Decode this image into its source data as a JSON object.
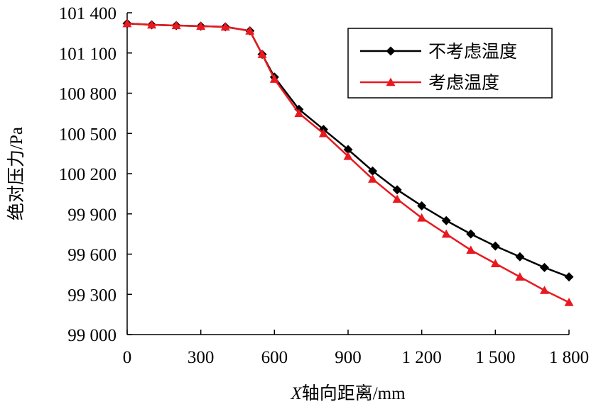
{
  "chart_data": {
    "type": "line",
    "xlabel_prefix": "X",
    "xlabel_rest": "轴向距离/mm",
    "ylabel": "绝对压力/Pa",
    "xlim": [
      0,
      1800
    ],
    "ylim": [
      99000,
      101400
    ],
    "x_ticks": [
      0,
      300,
      600,
      900,
      1200,
      1500,
      1800
    ],
    "x_tick_labels": [
      "0",
      "300",
      "600",
      "900",
      "1 200",
      "1 500",
      "1 800"
    ],
    "y_ticks": [
      99000,
      99300,
      99600,
      99900,
      100200,
      100500,
      100800,
      101100,
      101400
    ],
    "y_tick_labels": [
      "99 000",
      "99 300",
      "99 600",
      "99 900",
      "100 200",
      "100 500",
      "100 800",
      "101 100",
      "101 400"
    ],
    "grid": false,
    "legend_position": "top-right",
    "series": [
      {
        "name": "不考虑温度",
        "color": "#000000",
        "marker": "diamond",
        "x": [
          0,
          100,
          200,
          300,
          400,
          500,
          550,
          600,
          700,
          800,
          900,
          1000,
          1100,
          1200,
          1300,
          1400,
          1500,
          1600,
          1700,
          1800
        ],
        "y": [
          101320,
          101310,
          101305,
          101300,
          101295,
          101265,
          101090,
          100920,
          100680,
          100530,
          100380,
          100220,
          100080,
          99960,
          99850,
          99750,
          99660,
          99580,
          99500,
          99430
        ]
      },
      {
        "name": "考虑温度",
        "color": "#e8191f",
        "marker": "triangle",
        "x": [
          0,
          100,
          200,
          300,
          400,
          500,
          550,
          600,
          700,
          800,
          900,
          1000,
          1100,
          1200,
          1300,
          1400,
          1500,
          1600,
          1700,
          1800
        ],
        "y": [
          101320,
          101310,
          101305,
          101300,
          101295,
          101265,
          101090,
          100905,
          100650,
          100500,
          100330,
          100160,
          100010,
          99870,
          99750,
          99630,
          99530,
          99430,
          99330,
          99240
        ]
      }
    ]
  }
}
